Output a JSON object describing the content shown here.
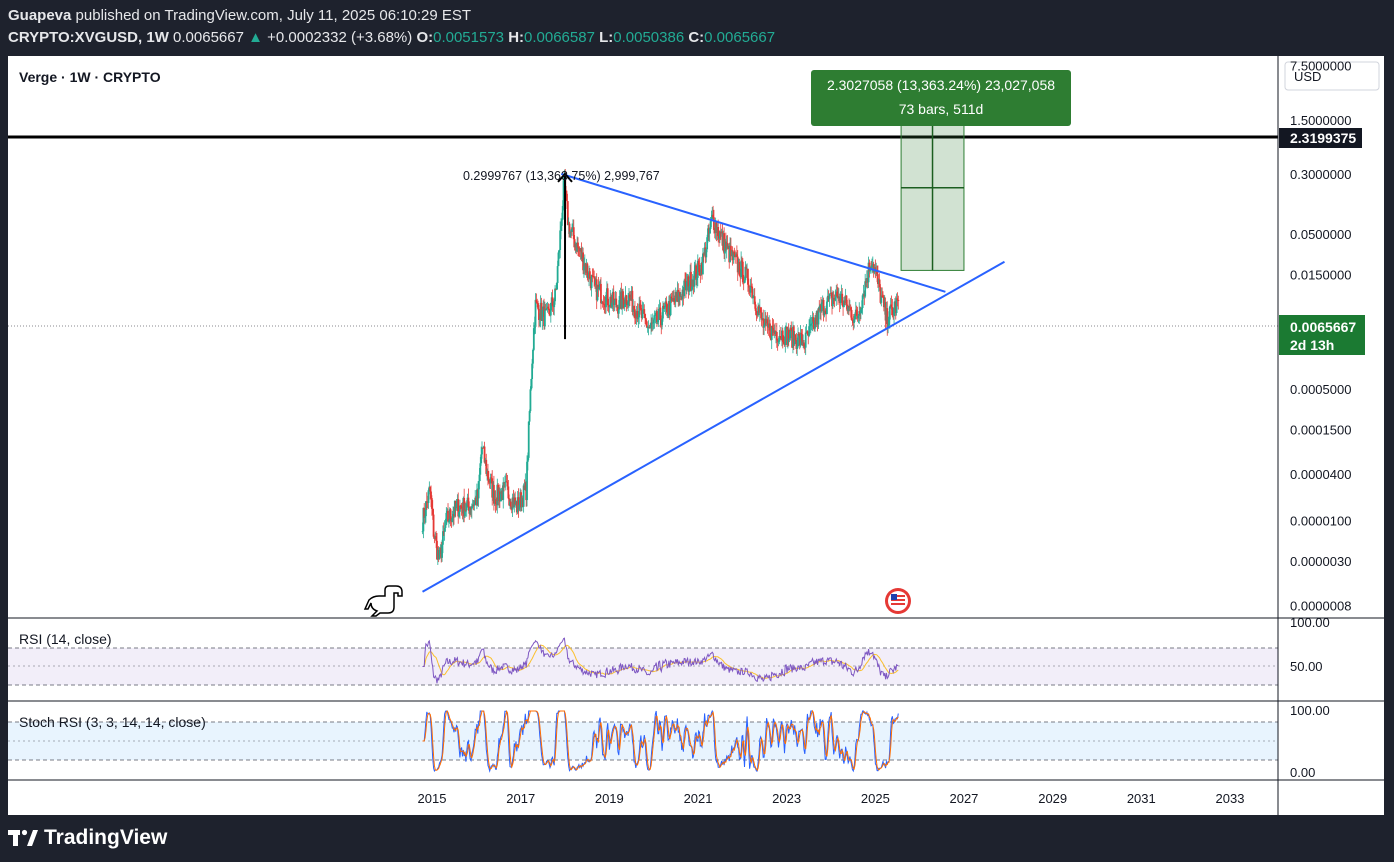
{
  "header": {
    "publisher": "Guapeva",
    "published_text": "published on TradingView.com, July 11, 2025 06:10:29 EST",
    "symbol": "CRYPTO:XVGUSD, 1W",
    "last": "0.0065667",
    "change": "+0.0002332 (+3.68%)",
    "o_label": "O:",
    "o": "0.0051573",
    "h_label": "H:",
    "h": "0.0066587",
    "l_label": "L:",
    "l": "0.0050386",
    "c_label": "C:",
    "c": "0.0065667"
  },
  "legend_title": "Verge · 1W · CRYPTO",
  "currency": "USD",
  "price_axis_labels": [
    "7.5000000",
    "1.5000000",
    "0.3000000",
    "0.0500000",
    "0.0150000",
    "0.0005000",
    "0.0001500",
    "0.0000400",
    "0.0000100",
    "0.0000030",
    "0.0000008"
  ],
  "horizontal_line_label": "2.3199375",
  "current_price_label": "0.0065667",
  "countdown": "2d 13h",
  "measure_top": {
    "line1": "2.3027058 (13,363.24%) 23,027,058",
    "line2": "73 bars, 511d"
  },
  "measure_past": "0.2999767 (13,363.75%) 2,999,767",
  "rsi": {
    "title": "RSI (14, close)",
    "label_top": "100.00",
    "label_mid": "50.00"
  },
  "stoch": {
    "title": "Stoch RSI (3, 3, 14, 14, close)",
    "label_top": "100.00",
    "label_bottom": "0.00"
  },
  "time_labels": [
    "2015",
    "2017",
    "2019",
    "2021",
    "2023",
    "2025",
    "2027",
    "2029",
    "2031",
    "2033"
  ],
  "footer_brand": "TradingView",
  "colors": {
    "up": "#22ab94",
    "down": "#e53935",
    "trendline": "#2962ff",
    "rsi": "#7e57c2",
    "rsi_ma": "#fbc02d",
    "stoch_k": "#2962ff",
    "stoch_d": "#ff6d00",
    "target_box": "#2e7d32"
  },
  "chart_data": {
    "type": "candlestick",
    "symbol": "CRYPTO:XVGUSD",
    "interval": "1W",
    "scale": "log",
    "x_range": [
      "2014",
      "2034"
    ],
    "y_range": [
      5e-07,
      10
    ],
    "waypoints": [
      [
        "2014-10-15",
        1e-05
      ],
      [
        "2014-12-15",
        2.5e-05
      ],
      [
        "2015-01-15",
        7e-06
      ],
      [
        "2015-03-01",
        3e-06
      ],
      [
        "2015-05-01",
        1e-05
      ],
      [
        "2015-08-01",
        1.5e-05
      ],
      [
        "2015-11-01",
        1.5e-05
      ],
      [
        "2016-01-15",
        2e-05
      ],
      [
        "2016-02-15",
        9e-05
      ],
      [
        "2016-04-01",
        4e-05
      ],
      [
        "2016-06-01",
        2e-05
      ],
      [
        "2016-09-01",
        2.5e-05
      ],
      [
        "2016-12-01",
        1.5e-05
      ],
      [
        "2017-02-15",
        2.5e-05
      ],
      [
        "2017-04-01",
        0.001
      ],
      [
        "2017-05-01",
        0.006
      ],
      [
        "2017-08-01",
        0.004
      ],
      [
        "2017-10-15",
        0.008
      ],
      [
        "2017-12-25",
        0.23
      ],
      [
        "2018-02-01",
        0.06
      ],
      [
        "2018-05-01",
        0.03
      ],
      [
        "2018-09-01",
        0.01
      ],
      [
        "2019-03-01",
        0.006
      ],
      [
        "2019-06-01",
        0.008
      ],
      [
        "2019-12-01",
        0.003
      ],
      [
        "2020-08-01",
        0.008
      ],
      [
        "2021-02-01",
        0.02
      ],
      [
        "2021-05-01",
        0.08
      ],
      [
        "2021-09-01",
        0.03
      ],
      [
        "2022-03-01",
        0.012
      ],
      [
        "2022-07-01",
        0.003
      ],
      [
        "2023-01-01",
        0.0025
      ],
      [
        "2023-06-01",
        0.002
      ],
      [
        "2023-11-01",
        0.006
      ],
      [
        "2024-03-01",
        0.008
      ],
      [
        "2024-08-01",
        0.004
      ],
      [
        "2024-12-01",
        0.025
      ],
      [
        "2025-04-01",
        0.004
      ],
      [
        "2025-07-11",
        0.0065667
      ]
    ],
    "annotations": {
      "horizontal_line": 2.3199375,
      "upper_trendline": [
        [
          "2017-12-01",
          0.3
        ],
        [
          "2026-08-01",
          0.009
        ]
      ],
      "lower_trendline": [
        [
          "2014-10-15",
          1.2e-06
        ],
        [
          "2027-12-01",
          0.022
        ]
      ],
      "measure_past": {
        "from": 0.0022,
        "to": 0.2999767,
        "date": "2018-01-01"
      },
      "measure_target": {
        "from_date": "2025-08-01",
        "to_date": "2027-01-01",
        "from": 0.017,
        "to": 2.3199375,
        "bars": 73
      }
    },
    "rsi": {
      "length": 14,
      "range": [
        0,
        100
      ]
    },
    "stoch_rsi": {
      "k": 3,
      "d": 3,
      "rsi_length": 14,
      "stoch_length": 14,
      "range": [
        0,
        100
      ]
    }
  }
}
